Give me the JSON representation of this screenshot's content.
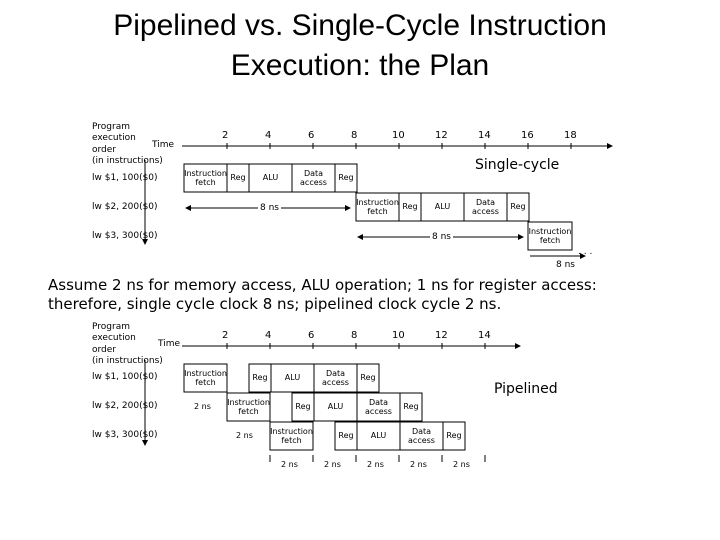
{
  "title_line1": "Pipelined vs. Single-Cycle Instruction",
  "title_line2": "Execution: the Plan",
  "axis": {
    "label_lines": [
      "Program",
      "execution",
      "order",
      "(in instructions)"
    ],
    "time_label": "Time",
    "ticks_top": [
      "2",
      "4",
      "6",
      "8",
      "10",
      "12",
      "14",
      "16",
      "18"
    ],
    "ticks_bottom": [
      "2",
      "4",
      "6",
      "8",
      "10",
      "12",
      "14"
    ]
  },
  "single_cycle": {
    "label": "Single-cycle",
    "instructions": [
      "lw $1, 100($0)",
      "lw $2, 200($0)",
      "lw $3, 300($0)"
    ],
    "stages": {
      "fetch_line1": "Instruction",
      "fetch_line2": "fetch",
      "reg": "Reg",
      "alu": "ALU",
      "data_line1": "Data",
      "data_line2": "access"
    },
    "duration": "8 ns",
    "ellipsis": ". . ."
  },
  "assumption_line1": "Assume 2 ns for memory access, ALU operation; 1 ns for register access:",
  "assumption_line2": "therefore, single cycle clock 8 ns; pipelined clock cycle 2 ns.",
  "pipelined": {
    "label": "Pipelined",
    "instructions": [
      "lw $1, 100($0)",
      "lw $2, 200($0)",
      "lw $3, 300($0)"
    ],
    "stage_duration": "2 ns"
  }
}
